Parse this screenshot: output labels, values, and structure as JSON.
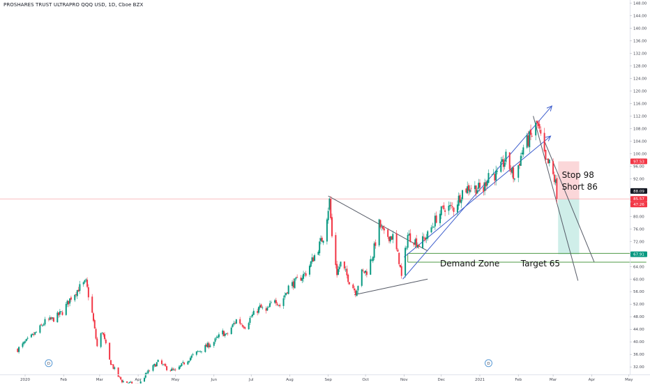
{
  "title": "PROSHARES TRUST ULTRAPRO QQQ USD, 1D, Cboe BZX",
  "chart_data": {
    "type": "candlestick",
    "ylim": [
      30,
      148
    ],
    "y_ticks": [
      "32.00",
      "36.00",
      "40.00",
      "44.00",
      "48.00",
      "52.00",
      "56.00",
      "60.00",
      "64.00",
      "68.00",
      "72.00",
      "76.00",
      "80.00",
      "84.00",
      "88.00",
      "92.00",
      "96.00",
      "100.00",
      "104.00",
      "108.00",
      "112.00",
      "116.00",
      "120.00",
      "124.00",
      "128.00",
      "132.00",
      "136.00",
      "140.00",
      "144.00",
      "148.00"
    ],
    "x_ticks": [
      "2020",
      "Feb",
      "Mar",
      "Apr",
      "May",
      "Jun",
      "Jul",
      "Aug",
      "Sep",
      "Oct",
      "Nov",
      "Dec",
      "2021",
      "Feb",
      "Mar",
      "Apr",
      "May"
    ],
    "x_tick_dates": [
      "2020-01-01",
      "2020-02-01",
      "2020-03-01",
      "2020-04-01",
      "2020-05-01",
      "2020-06-01",
      "2020-07-01",
      "2020-08-01",
      "2020-09-01",
      "2020-10-01",
      "2020-11-01",
      "2020-12-01",
      "2021-01-01",
      "2021-02-01",
      "2021-03-01",
      "2021-04-01",
      "2021-05-01"
    ],
    "price_path": [
      {
        "date": "2019-12-26",
        "close": 37.6
      },
      {
        "date": "2020-01-03",
        "close": 40.5
      },
      {
        "date": "2020-01-10",
        "close": 43.0
      },
      {
        "date": "2020-01-17",
        "close": 46.4
      },
      {
        "date": "2020-01-24",
        "close": 47.3
      },
      {
        "date": "2020-01-31",
        "close": 49.5
      },
      {
        "date": "2020-02-07",
        "close": 54.2
      },
      {
        "date": "2020-02-14",
        "close": 57.4
      },
      {
        "date": "2020-02-19",
        "close": 58.9
      },
      {
        "date": "2020-02-24",
        "close": 49.0
      },
      {
        "date": "2020-02-28",
        "close": 38.5
      },
      {
        "date": "2020-03-03",
        "close": 43.5
      },
      {
        "date": "2020-03-09",
        "close": 34.0
      },
      {
        "date": "2020-03-16",
        "close": 29.0
      },
      {
        "date": "2020-03-19",
        "close": 27.5
      },
      {
        "date": "2020-04-01",
        "close": 26.0
      },
      {
        "date": "2020-04-08",
        "close": 30.0
      },
      {
        "date": "2020-04-17",
        "close": 33.6
      },
      {
        "date": "2020-04-24",
        "close": 31.6
      },
      {
        "date": "2020-05-01",
        "close": 30.6
      },
      {
        "date": "2020-05-08",
        "close": 33.3
      },
      {
        "date": "2020-05-15",
        "close": 35.6
      },
      {
        "date": "2020-05-22",
        "close": 37.6
      },
      {
        "date": "2020-06-01",
        "close": 40.0
      },
      {
        "date": "2020-06-08",
        "close": 43.0
      },
      {
        "date": "2020-06-11",
        "close": 42.0
      },
      {
        "date": "2020-06-19",
        "close": 47.0
      },
      {
        "date": "2020-06-26",
        "close": 45.0
      },
      {
        "date": "2020-07-01",
        "close": 48.0
      },
      {
        "date": "2020-07-08",
        "close": 51.0
      },
      {
        "date": "2020-07-13",
        "close": 49.5
      },
      {
        "date": "2020-07-20",
        "close": 54.0
      },
      {
        "date": "2020-07-24",
        "close": 51.5
      },
      {
        "date": "2020-07-31",
        "close": 57.5
      },
      {
        "date": "2020-08-07",
        "close": 59.5
      },
      {
        "date": "2020-08-14",
        "close": 62.0
      },
      {
        "date": "2020-08-21",
        "close": 67.5
      },
      {
        "date": "2020-08-28",
        "close": 73.5
      },
      {
        "date": "2020-09-02",
        "close": 85.0
      },
      {
        "date": "2020-09-04",
        "close": 73.5
      },
      {
        "date": "2020-09-08",
        "close": 62.0
      },
      {
        "date": "2020-09-11",
        "close": 65.0
      },
      {
        "date": "2020-09-18",
        "close": 59.5
      },
      {
        "date": "2020-09-23",
        "close": 56.0
      },
      {
        "date": "2020-09-28",
        "close": 62.0
      },
      {
        "date": "2020-10-02",
        "close": 62.5
      },
      {
        "date": "2020-10-07",
        "close": 68.0
      },
      {
        "date": "2020-10-12",
        "close": 77.5
      },
      {
        "date": "2020-10-16",
        "close": 74.0
      },
      {
        "date": "2020-10-23",
        "close": 73.5
      },
      {
        "date": "2020-10-28",
        "close": 66.0
      },
      {
        "date": "2020-10-30",
        "close": 60.5
      },
      {
        "date": "2020-11-04",
        "close": 74.0
      },
      {
        "date": "2020-11-09",
        "close": 72.5
      },
      {
        "date": "2020-11-13",
        "close": 71.0
      },
      {
        "date": "2020-11-20",
        "close": 74.0
      },
      {
        "date": "2020-11-27",
        "close": 79.5
      },
      {
        "date": "2020-12-04",
        "close": 83.0
      },
      {
        "date": "2020-12-11",
        "close": 82.5
      },
      {
        "date": "2020-12-18",
        "close": 88.0
      },
      {
        "date": "2020-12-24",
        "close": 89.5
      },
      {
        "date": "2021-01-04",
        "close": 88.5
      },
      {
        "date": "2021-01-08",
        "close": 94.0
      },
      {
        "date": "2021-01-15",
        "close": 93.0
      },
      {
        "date": "2021-01-22",
        "close": 98.5
      },
      {
        "date": "2021-01-29",
        "close": 92.0
      },
      {
        "date": "2021-02-05",
        "close": 102.0
      },
      {
        "date": "2021-02-12",
        "close": 106.0
      },
      {
        "date": "2021-02-16",
        "close": 109.5
      },
      {
        "date": "2021-02-19",
        "close": 105.0
      },
      {
        "date": "2021-02-23",
        "close": 97.0
      },
      {
        "date": "2021-02-26",
        "close": 96.5
      },
      {
        "date": "2021-03-03",
        "close": 90.5
      },
      {
        "date": "2021-03-04",
        "close": 85.6
      }
    ],
    "price_labels": [
      {
        "text": "97.53",
        "value": 97.53,
        "color": "#f23645"
      },
      {
        "text": "88.09",
        "value": 88.09,
        "color": "#131722"
      },
      {
        "text": "85.57",
        "value": 85.57,
        "color": "#f23645"
      },
      {
        "text": "67.91",
        "value": 67.91,
        "color": "#089981"
      }
    ],
    "countdown_label": "47:26",
    "current_price": 85.57,
    "annotations": [
      {
        "text": "Stop 98",
        "date": "2021-03-08",
        "value": 93.2
      },
      {
        "text": "Short 86",
        "date": "2021-03-08",
        "value": 89.4
      },
      {
        "text": "Demand Zone",
        "date": "2020-11-30",
        "value": 65.0
      },
      {
        "text": "Target 65",
        "date": "2021-02-03",
        "value": 65.0
      }
    ],
    "event_markers": [
      {
        "date": "2020-01-20",
        "value": 33.2,
        "text": "D"
      },
      {
        "date": "2021-01-08",
        "value": 33.2,
        "text": "D"
      }
    ],
    "drawings": {
      "channel_upper": {
        "from": {
          "date": "2020-10-31",
          "value": 60.0
        },
        "to": {
          "date": "2021-02-28",
          "value": 115.2
        }
      },
      "channel_lower": {
        "from": {
          "date": "2020-11-01",
          "value": 67.0
        },
        "to": {
          "date": "2021-02-27",
          "value": 105.6
        }
      },
      "sep_trend": {
        "from": {
          "date": "2020-09-01",
          "value": 86.5
        },
        "to": {
          "date": "2020-11-20",
          "value": 69.0
        }
      },
      "sep_base": {
        "from": {
          "date": "2020-09-22",
          "value": 55.0
        },
        "to": {
          "date": "2020-11-20",
          "value": 60.0
        }
      },
      "drop_line_1": {
        "from": {
          "date": "2021-02-13",
          "value": 112.0
        },
        "to": {
          "date": "2021-03-21",
          "value": 59.5
        }
      },
      "drop_line_2": {
        "from": {
          "date": "2021-02-22",
          "value": 104.0
        },
        "to": {
          "date": "2021-04-03",
          "value": 65.5
        }
      },
      "demand_zone": {
        "from": "2020-11-04",
        "to": "2021-05-15",
        "low": 65.4,
        "high": 68.2
      },
      "stop_zone": {
        "from": "2021-03-05",
        "to": "2021-03-22",
        "low": 85.57,
        "high": 97.53
      },
      "target_zone": {
        "from": "2021-03-05",
        "to": "2021-03-22",
        "low": 67.91,
        "high": 85.57
      }
    },
    "colors": {
      "up": "#089981",
      "down": "#f23645",
      "trend": "#5b6bbf",
      "channel": "#3b5ccc",
      "stop_fill": "#fbd7d9",
      "target_fill": "#cfeee9",
      "zone_line": "#4e9a46",
      "price_line": "#f8a6ab"
    }
  }
}
